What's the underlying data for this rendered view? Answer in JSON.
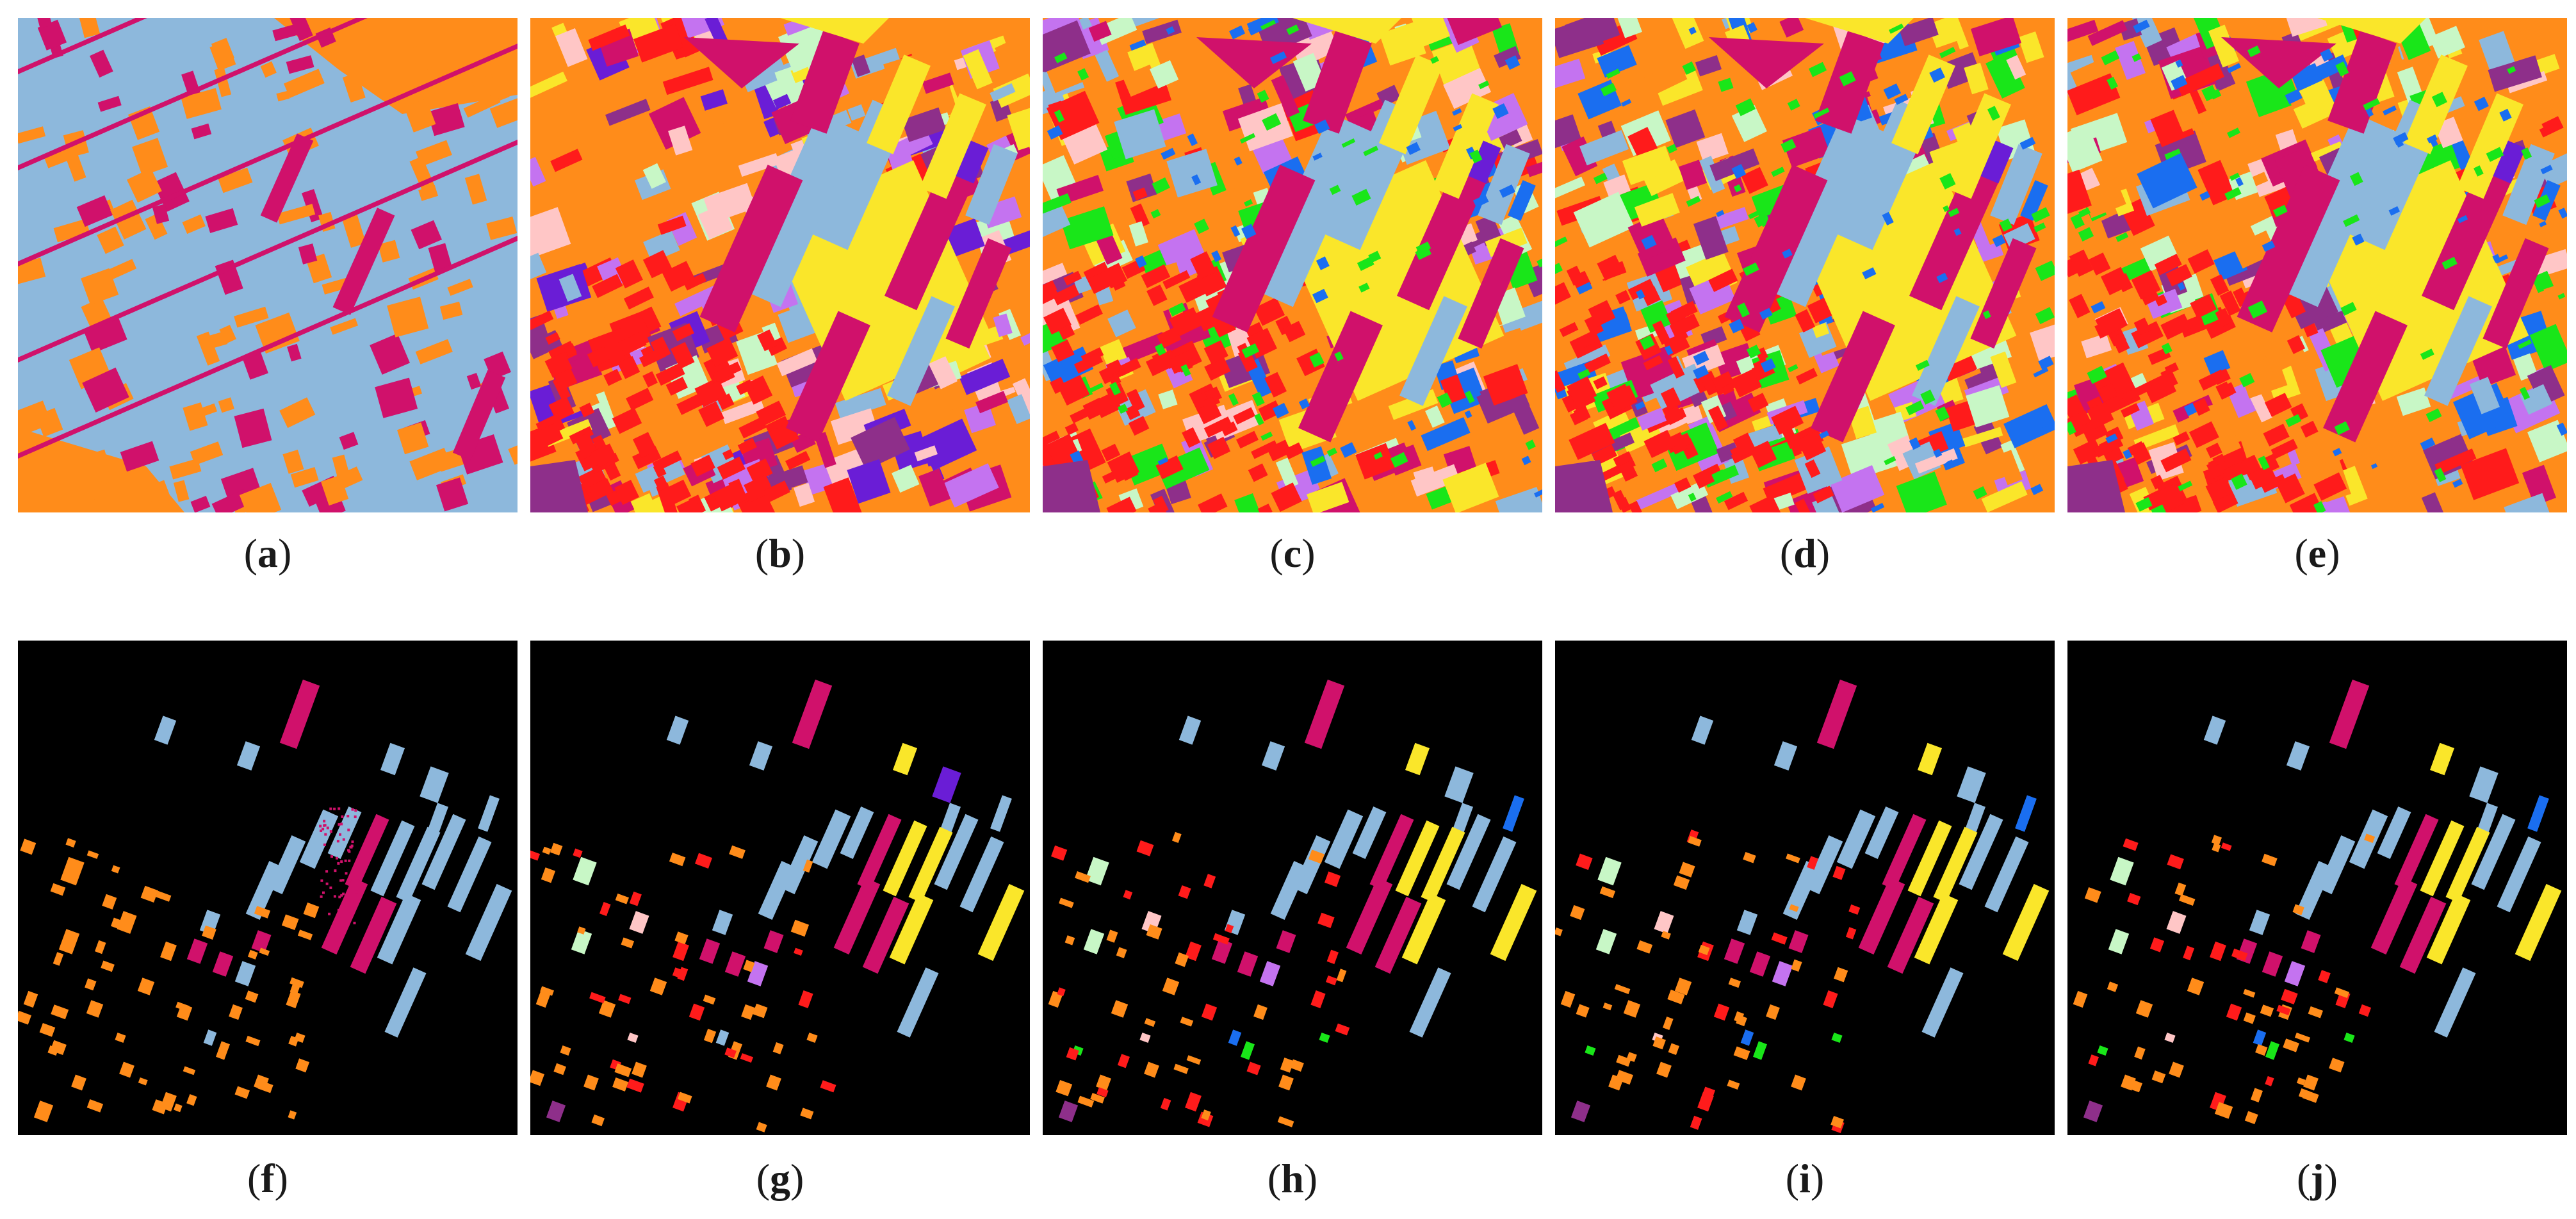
{
  "figure": {
    "panels": [
      {
        "id": "a",
        "caption_label": "a",
        "kind": "full-map",
        "palette": [
          "#ff8c1a",
          "#d0116b",
          "#8db8dc"
        ]
      },
      {
        "id": "b",
        "caption_label": "b",
        "kind": "full-map",
        "palette": [
          "#ff8c1a",
          "#ff1b1b",
          "#d0116b",
          "#fae62a",
          "#8db8dc",
          "#ffc6c6",
          "#c8f7c6",
          "#c473f0",
          "#6a1dd6",
          "#8e2f8a"
        ]
      },
      {
        "id": "c",
        "caption_label": "c",
        "kind": "full-map",
        "palette": [
          "#ff8c1a",
          "#ff1b1b",
          "#d0116b",
          "#fae62a",
          "#8db8dc",
          "#ffc6c6",
          "#c8f7c6",
          "#c473f0",
          "#1a6ef0",
          "#19e619",
          "#8e2f8a"
        ]
      },
      {
        "id": "d",
        "caption_label": "d",
        "kind": "full-map",
        "palette": [
          "#ff8c1a",
          "#ff1b1b",
          "#d0116b",
          "#fae62a",
          "#8db8dc",
          "#ffc6c6",
          "#c8f7c6",
          "#c473f0",
          "#1a6ef0",
          "#19e619",
          "#8e2f8a"
        ]
      },
      {
        "id": "e",
        "caption_label": "e",
        "kind": "full-map",
        "palette": [
          "#ff8c1a",
          "#ff1b1b",
          "#d0116b",
          "#fae62a",
          "#8db8dc",
          "#ffc6c6",
          "#c8f7c6",
          "#c473f0",
          "#1a6ef0",
          "#19e619",
          "#8e2f8a"
        ]
      },
      {
        "id": "f",
        "caption_label": "f",
        "kind": "sparse-map",
        "palette": [
          "#ff8c1a",
          "#d0116b",
          "#8db8dc"
        ]
      },
      {
        "id": "g",
        "caption_label": "g",
        "kind": "sparse-map",
        "palette": [
          "#ff8c1a",
          "#ff1b1b",
          "#d0116b",
          "#fae62a",
          "#8db8dc",
          "#ffc6c6",
          "#c8f7c6",
          "#c473f0",
          "#6a1dd6",
          "#8e2f8a"
        ]
      },
      {
        "id": "h",
        "caption_label": "h",
        "kind": "sparse-map",
        "palette": [
          "#ff8c1a",
          "#ff1b1b",
          "#d0116b",
          "#fae62a",
          "#8db8dc",
          "#ffc6c6",
          "#c8f7c6",
          "#c473f0",
          "#1a6ef0",
          "#19e619",
          "#8e2f8a"
        ]
      },
      {
        "id": "i",
        "caption_label": "i",
        "kind": "sparse-map",
        "palette": [
          "#ff8c1a",
          "#ff1b1b",
          "#d0116b",
          "#fae62a",
          "#8db8dc",
          "#ffc6c6",
          "#c8f7c6",
          "#c473f0",
          "#1a6ef0",
          "#19e619",
          "#8e2f8a"
        ]
      },
      {
        "id": "j",
        "caption_label": "j",
        "kind": "sparse-map",
        "palette": [
          "#ff8c1a",
          "#ff1b1b",
          "#d0116b",
          "#fae62a",
          "#8db8dc",
          "#ffc6c6",
          "#c8f7c6",
          "#c473f0",
          "#1a6ef0",
          "#19e619",
          "#8e2f8a"
        ]
      }
    ],
    "colors": {
      "orange": "#ff8c1a",
      "red": "#ff1b1b",
      "magenta": "#d0116b",
      "yellow": "#fae62a",
      "light_blue": "#8db8dc",
      "pink": "#ffc6c6",
      "mint": "#c8f7c6",
      "lilac": "#c473f0",
      "violet": "#6a1dd6",
      "blue": "#1a6ef0",
      "green": "#19e619",
      "plum": "#8e2f8a",
      "background_black": "#000000"
    }
  }
}
